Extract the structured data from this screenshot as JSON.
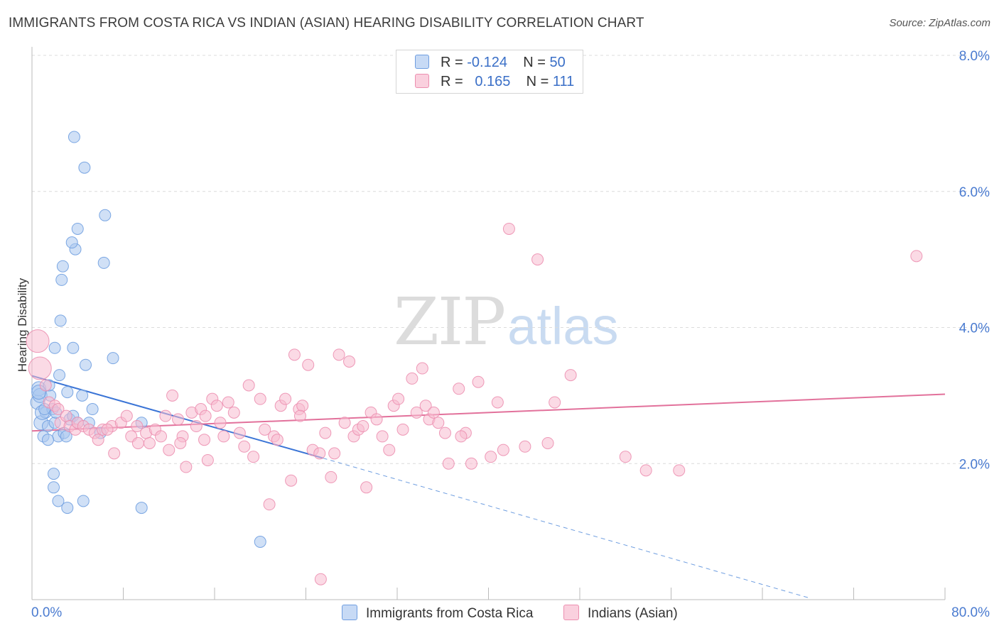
{
  "title": "IMMIGRANTS FROM COSTA RICA VS INDIAN (ASIAN) HEARING DISABILITY CORRELATION CHART",
  "source": "Source: ZipAtlas.com",
  "watermark": {
    "zip": "ZIP",
    "atlas": "atlas"
  },
  "legend": {
    "r_label": "R =",
    "n_label": "N =",
    "rows": [
      {
        "r": "-0.124",
        "n": "50",
        "color": "#a9c6ef",
        "border": "#6f9ee0"
      },
      {
        "r": "0.165",
        "n": "111",
        "color": "#f7bcd0",
        "border": "#ec8fb0"
      }
    ]
  },
  "chart_data": {
    "type": "scatter",
    "title": "IMMIGRANTS FROM COSTA RICA VS INDIAN (ASIAN) HEARING DISABILITY CORRELATION CHART",
    "xlabel": "",
    "ylabel": "Hearing Disability",
    "xlim": [
      0,
      80
    ],
    "ylim": [
      0,
      8
    ],
    "x_tick_labels": [
      "0.0%",
      "80.0%"
    ],
    "y_tick_labels": [
      "2.0%",
      "4.0%",
      "6.0%",
      "8.0%"
    ],
    "y_ticks": [
      2,
      4,
      6,
      8
    ],
    "grid": "horizontal dashed",
    "legend_position": "top-center and bottom",
    "series": [
      {
        "name": "Immigrants from Costa Rica",
        "color": "#6f9ee0",
        "fill": "#a9c6ef",
        "trend": {
          "x": [
            0,
            25.5
          ],
          "y": [
            3.29,
            2.08
          ],
          "dashed_to": [
            68,
            0.03
          ]
        },
        "points": [
          [
            0.5,
            2.9
          ],
          [
            0.6,
            3.1
          ],
          [
            0.8,
            2.6
          ],
          [
            1.0,
            2.4
          ],
          [
            1.2,
            2.75
          ],
          [
            1.4,
            2.55
          ],
          [
            0.7,
            3.0
          ],
          [
            0.9,
            2.75
          ],
          [
            1.6,
            3.0
          ],
          [
            1.8,
            2.8
          ],
          [
            2.0,
            2.6
          ],
          [
            1.5,
            3.15
          ],
          [
            2.4,
            3.3
          ],
          [
            2.3,
            2.4
          ],
          [
            2.8,
            2.45
          ],
          [
            3.0,
            2.4
          ],
          [
            3.1,
            3.05
          ],
          [
            3.3,
            2.65
          ],
          [
            3.6,
            2.7
          ],
          [
            4.0,
            2.6
          ],
          [
            4.4,
            3.0
          ],
          [
            4.7,
            3.45
          ],
          [
            5.0,
            2.6
          ],
          [
            5.3,
            2.8
          ],
          [
            6.0,
            2.45
          ],
          [
            7.1,
            3.55
          ],
          [
            9.6,
            2.6
          ],
          [
            1.9,
            1.85
          ],
          [
            1.9,
            1.65
          ],
          [
            2.3,
            1.45
          ],
          [
            3.1,
            1.35
          ],
          [
            4.5,
            1.45
          ],
          [
            9.6,
            1.35
          ],
          [
            20.0,
            0.85
          ],
          [
            2.7,
            4.9
          ],
          [
            2.6,
            4.7
          ],
          [
            2.5,
            4.1
          ],
          [
            2.0,
            3.7
          ],
          [
            3.6,
            3.7
          ],
          [
            3.8,
            5.15
          ],
          [
            4.0,
            5.45
          ],
          [
            4.6,
            6.35
          ],
          [
            6.4,
            5.65
          ],
          [
            6.3,
            4.95
          ],
          [
            3.5,
            5.25
          ],
          [
            3.7,
            6.8
          ],
          [
            1.4,
            2.35
          ],
          [
            0.6,
            3.05
          ],
          [
            1.1,
            2.8
          ],
          [
            2.1,
            2.75
          ]
        ]
      },
      {
        "name": "Indians (Asian)",
        "color": "#ec8fb0",
        "fill": "#f7bcd0",
        "trend": {
          "x": [
            0,
            80
          ],
          "y": [
            2.48,
            3.02
          ]
        },
        "points": [
          [
            0.5,
            3.8
          ],
          [
            0.7,
            3.4
          ],
          [
            1.2,
            3.15
          ],
          [
            1.5,
            2.9
          ],
          [
            2.0,
            2.85
          ],
          [
            2.3,
            2.8
          ],
          [
            2.5,
            2.6
          ],
          [
            3.0,
            2.7
          ],
          [
            3.3,
            2.55
          ],
          [
            3.8,
            2.5
          ],
          [
            4.0,
            2.6
          ],
          [
            4.5,
            2.55
          ],
          [
            5.0,
            2.5
          ],
          [
            5.5,
            2.45
          ],
          [
            5.8,
            2.35
          ],
          [
            6.2,
            2.5
          ],
          [
            7.0,
            2.55
          ],
          [
            7.2,
            2.15
          ],
          [
            7.8,
            2.6
          ],
          [
            8.3,
            2.7
          ],
          [
            8.7,
            2.4
          ],
          [
            9.2,
            2.55
          ],
          [
            10.0,
            2.45
          ],
          [
            10.3,
            2.3
          ],
          [
            10.8,
            2.5
          ],
          [
            11.3,
            2.4
          ],
          [
            11.7,
            2.7
          ],
          [
            12.0,
            2.2
          ],
          [
            12.3,
            3.0
          ],
          [
            12.8,
            2.65
          ],
          [
            13.2,
            2.4
          ],
          [
            13.5,
            1.95
          ],
          [
            14.0,
            2.75
          ],
          [
            14.4,
            2.55
          ],
          [
            14.8,
            2.8
          ],
          [
            15.1,
            2.35
          ],
          [
            15.4,
            2.05
          ],
          [
            15.8,
            2.95
          ],
          [
            16.2,
            2.85
          ],
          [
            16.5,
            2.6
          ],
          [
            16.8,
            2.4
          ],
          [
            17.2,
            2.9
          ],
          [
            17.7,
            2.75
          ],
          [
            18.2,
            2.45
          ],
          [
            18.6,
            2.25
          ],
          [
            19.0,
            3.15
          ],
          [
            19.4,
            2.1
          ],
          [
            20.0,
            2.95
          ],
          [
            20.4,
            2.5
          ],
          [
            20.8,
            1.4
          ],
          [
            21.2,
            2.4
          ],
          [
            21.5,
            2.35
          ],
          [
            21.8,
            2.85
          ],
          [
            22.2,
            2.95
          ],
          [
            22.7,
            1.75
          ],
          [
            23.0,
            3.6
          ],
          [
            23.4,
            2.8
          ],
          [
            23.7,
            2.85
          ],
          [
            24.2,
            3.45
          ],
          [
            24.6,
            2.2
          ],
          [
            25.2,
            2.15
          ],
          [
            25.7,
            2.45
          ],
          [
            26.2,
            1.8
          ],
          [
            26.5,
            2.15
          ],
          [
            26.9,
            3.6
          ],
          [
            27.4,
            2.6
          ],
          [
            27.8,
            3.5
          ],
          [
            28.2,
            2.4
          ],
          [
            28.6,
            2.5
          ],
          [
            29.0,
            2.55
          ],
          [
            29.3,
            1.65
          ],
          [
            29.7,
            2.75
          ],
          [
            30.2,
            2.65
          ],
          [
            30.7,
            2.4
          ],
          [
            31.3,
            2.2
          ],
          [
            31.7,
            2.85
          ],
          [
            32.1,
            2.95
          ],
          [
            32.5,
            2.5
          ],
          [
            33.3,
            3.25
          ],
          [
            33.7,
            2.75
          ],
          [
            34.2,
            3.4
          ],
          [
            34.5,
            2.85
          ],
          [
            34.8,
            2.65
          ],
          [
            35.2,
            2.75
          ],
          [
            35.6,
            2.6
          ],
          [
            36.2,
            2.45
          ],
          [
            36.5,
            2.0
          ],
          [
            37.4,
            3.1
          ],
          [
            38.0,
            2.45
          ],
          [
            38.5,
            2.0
          ],
          [
            39.1,
            3.2
          ],
          [
            40.2,
            2.1
          ],
          [
            40.8,
            2.9
          ],
          [
            41.3,
            2.2
          ],
          [
            41.8,
            5.45
          ],
          [
            43.2,
            2.25
          ],
          [
            44.3,
            5.0
          ],
          [
            45.2,
            2.3
          ],
          [
            45.8,
            2.9
          ],
          [
            47.2,
            3.3
          ],
          [
            52.0,
            2.1
          ],
          [
            53.8,
            1.9
          ],
          [
            56.7,
            1.9
          ],
          [
            77.5,
            5.05
          ],
          [
            25.3,
            0.3
          ],
          [
            6.6,
            2.5
          ],
          [
            9.3,
            2.3
          ],
          [
            13.0,
            2.3
          ],
          [
            23.5,
            2.7
          ],
          [
            37.6,
            2.4
          ],
          [
            15.2,
            2.7
          ]
        ]
      }
    ]
  }
}
